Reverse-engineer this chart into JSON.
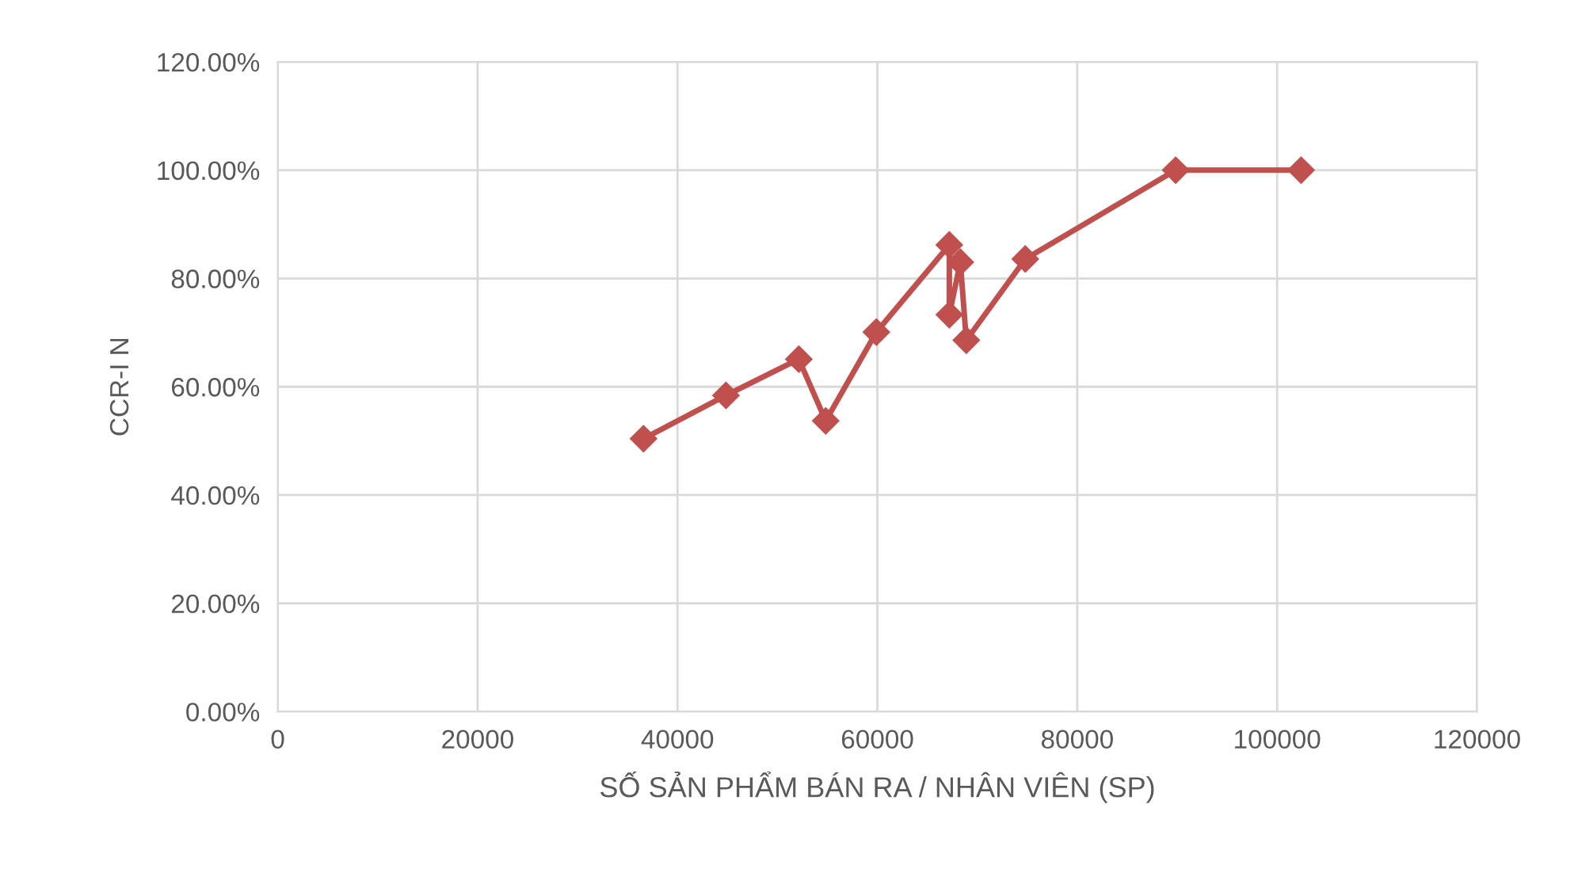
{
  "chart_data": {
    "type": "line",
    "xlabel": "SỐ SẢN PHẨM BÁN RA / NHÂN VIÊN (SP)",
    "ylabel": "CCR-I N",
    "x": [
      36600,
      44850,
      52140,
      54830,
      59900,
      67200,
      67200,
      68300,
      68900,
      74800,
      89850,
      102400
    ],
    "series": [
      {
        "color": "#c0504d",
        "values": [
          50.4,
          58.4,
          65.1,
          53.7,
          70.1,
          86.2,
          73.3,
          83.0,
          68.6,
          83.6,
          100,
          100
        ]
      }
    ],
    "xlim": [
      0,
      120000
    ],
    "xticks": [
      0,
      20000,
      40000,
      60000,
      80000,
      100000,
      120000
    ],
    "ylim": [
      0,
      120
    ],
    "yticks": [
      {
        "value": 0,
        "label": "0.00%"
      },
      {
        "value": 20,
        "label": "20.00%"
      },
      {
        "value": 40,
        "label": "40.00%"
      },
      {
        "value": 60,
        "label": "60.00%"
      },
      {
        "value": 80,
        "label": "80.00%"
      },
      {
        "value": 100,
        "label": "100.00%"
      },
      {
        "value": 120,
        "label": "120.00%"
      }
    ],
    "grid": true,
    "marker": "diamond",
    "line_style": "solid"
  }
}
